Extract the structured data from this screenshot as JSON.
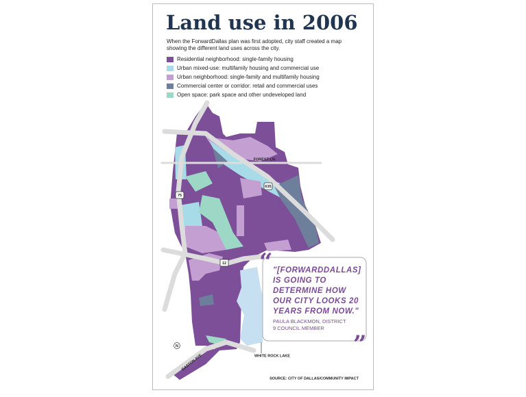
{
  "title": "Land use in 2006",
  "description": [
    "When the ForwardDallas plan was first adopted, city staff created a map",
    "showing the different land uses across the city."
  ],
  "legend": [
    {
      "label": "Residential neighborhood: single-family housing",
      "color": "#7d4f98"
    },
    {
      "label": "Urban mixed-use: multifamily housing and commercial use",
      "color": "#a7dbe8"
    },
    {
      "label": "Urban neighborhood: single-family and multifamily housing",
      "color": "#c3a0d1"
    },
    {
      "label": "Commercial center or corridor: retail and commercial uses",
      "color": "#6e7f9c"
    },
    {
      "label": "Open space: park space and other undeveloped land",
      "color": "#9dd7c6"
    }
  ],
  "map_labels": {
    "forest_ln": "FOREST LN.",
    "i635": "635",
    "us75": "75",
    "hwy12": "12",
    "gaston_ave": "GASTON AVE.",
    "north": "N",
    "white_rock_lake": "WHITE ROCK LAKE"
  },
  "quote": {
    "open_mark": "“",
    "close_mark": "”",
    "lines": [
      "\"[FORWARDDALLAS]",
      "IS GOING TO",
      "DETERMINE HOW",
      "OUR CITY LOOKS 20",
      "YEARS FROM NOW.\""
    ],
    "attribution": [
      "PAULA BLACKMON, DISTRICT",
      "9 COUNCIL MEMBER"
    ]
  },
  "source": "SOURCE: CITY OF DALLAS/COMMUNITY IMPACT"
}
